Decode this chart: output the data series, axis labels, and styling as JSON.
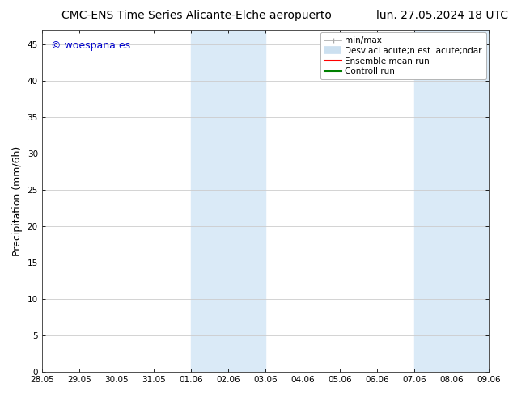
{
  "title_left": "CMC-ENS Time Series Alicante-Elche aeropuerto",
  "title_right": "lun. 27.05.2024 18 UTC",
  "ylabel": "Precipitation (mm/6h)",
  "watermark": "© woespana.es",
  "watermark_color": "#0000cc",
  "ylim": [
    0,
    47
  ],
  "yticks": [
    0,
    5,
    10,
    15,
    20,
    25,
    30,
    35,
    40,
    45
  ],
  "xtick_labels": [
    "28.05",
    "29.05",
    "30.05",
    "31.05",
    "01.06",
    "02.06",
    "03.06",
    "04.06",
    "05.06",
    "06.06",
    "07.06",
    "08.06",
    "09.06"
  ],
  "xmin": 0,
  "xmax": 12,
  "shaded_regions": [
    {
      "xstart": 4,
      "xend": 6,
      "color": "#daeaf7"
    },
    {
      "xstart": 10,
      "xend": 12,
      "color": "#daeaf7"
    }
  ],
  "legend_items": [
    {
      "label": "min/max",
      "color": "#aaaaaa",
      "lw": 1.2,
      "style": "line_with_caps"
    },
    {
      "label": "Desviaci acute;n est  acute;ndar",
      "color": "#cce0f0",
      "lw": 8,
      "style": "thick_line"
    },
    {
      "label": "Ensemble mean run",
      "color": "#ff0000",
      "lw": 1.5,
      "style": "line"
    },
    {
      "label": "Controll run",
      "color": "#008000",
      "lw": 1.5,
      "style": "line"
    }
  ],
  "bg_color": "#ffffff",
  "plot_bg_color": "#ffffff",
  "grid_color": "#cccccc",
  "title_fontsize": 10,
  "tick_fontsize": 7.5,
  "ylabel_fontsize": 9,
  "legend_fontsize": 7.5
}
